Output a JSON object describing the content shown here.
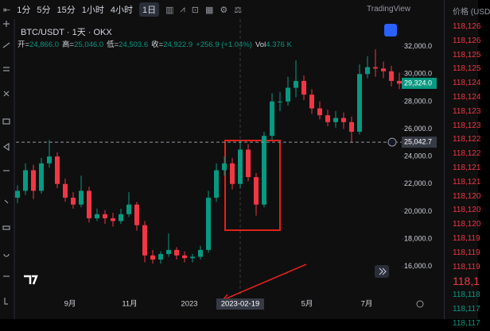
{
  "toolbar": {
    "intervals": [
      "1分",
      "5分",
      "15分",
      "1小时",
      "4小时",
      "1日"
    ],
    "brand": "TradingView"
  },
  "legend": {
    "symbol": "BTC/USDT · 1天 · OKX",
    "items": [
      {
        "label": "开=",
        "value": "24,866.0"
      },
      {
        "label": "高=",
        "value": "25,046.0"
      },
      {
        "label": "低=",
        "value": "24,503.6"
      },
      {
        "label": "收=",
        "value": "24,922.9"
      }
    ],
    "change": "+256.9 (+1.04%)",
    "vol_label": "Vol",
    "vol": "4.376 K"
  },
  "chart": {
    "type": "candlestick",
    "up_color": "#089981",
    "down_color": "#f23645",
    "open": [
      21000,
      21500,
      23000,
      21500,
      23500,
      24000,
      22000,
      21000,
      20500,
      21500,
      19500,
      19800,
      19500,
      19300,
      19800,
      20500,
      19000,
      16800,
      16500,
      16900,
      17200,
      16800,
      16600,
      16700,
      17200,
      21000,
      23000,
      23500,
      22000,
      24500,
      22500,
      20500,
      25500,
      28000,
      28000,
      29000,
      29500,
      28500,
      27500,
      27000,
      26500,
      26800,
      26500,
      25800,
      30000,
      30500,
      30400,
      30200,
      29500
    ],
    "high": [
      21900,
      23500,
      23400,
      23900,
      25200,
      24300,
      22400,
      21400,
      22600,
      21800,
      20200,
      20100,
      19900,
      20200,
      21400,
      20700,
      19300,
      17200,
      17100,
      18400,
      17400,
      17100,
      16900,
      17500,
      21500,
      23500,
      24000,
      23900,
      25200,
      24900,
      22800,
      25800,
      28600,
      28700,
      29800,
      31000,
      29900,
      28900,
      28000,
      27400,
      27300,
      27200,
      26900,
      30700,
      31300,
      31800,
      30900,
      30600,
      30100
    ],
    "low": [
      20600,
      21200,
      20900,
      21300,
      23200,
      21700,
      20700,
      20200,
      20300,
      19200,
      19300,
      19100,
      18900,
      19100,
      19600,
      18600,
      16300,
      16200,
      16200,
      16700,
      16500,
      16300,
      16300,
      16500,
      17000,
      20700,
      22600,
      21600,
      21700,
      22200,
      19700,
      20300,
      25200,
      27300,
      27700,
      28300,
      28100,
      27100,
      26700,
      26200,
      26100,
      26000,
      25000,
      25600,
      29700,
      29800,
      29700,
      29100,
      28900
    ],
    "close": [
      21500,
      23000,
      21500,
      23500,
      24000,
      22000,
      21000,
      20500,
      21500,
      19500,
      19800,
      19500,
      19300,
      19800,
      20500,
      19000,
      16800,
      16500,
      16900,
      17200,
      16800,
      16600,
      16700,
      17200,
      21000,
      23000,
      23500,
      22000,
      24500,
      22500,
      20500,
      25500,
      28000,
      28000,
      29000,
      29500,
      28500,
      27500,
      27000,
      26500,
      26800,
      26500,
      25800,
      30000,
      30500,
      30400,
      30200,
      29500,
      29300
    ],
    "xlim": [
      -0.2,
      48.3
    ],
    "ylim": [
      13900,
      34000
    ],
    "xticks": [
      {
        "value": 6.6,
        "label": "9月"
      },
      {
        "value": 14.1,
        "label": "11月"
      },
      {
        "value": 21.6,
        "label": "2023"
      },
      {
        "value": 36.4,
        "label": "5月"
      },
      {
        "value": 43.9,
        "label": "7月"
      }
    ],
    "yticks": [
      {
        "value": 16000,
        "label": "16,000.0"
      },
      {
        "value": 18000,
        "label": "18,000.0"
      },
      {
        "value": 20000,
        "label": "20,000.0"
      },
      {
        "value": 22000,
        "label": "22,000.0"
      },
      {
        "value": 24000,
        "label": "24,000.0"
      },
      {
        "value": 26000,
        "label": "26,000.0"
      },
      {
        "value": 28000,
        "label": "28,000.0"
      },
      {
        "value": 30000,
        "label": "30,000.0"
      },
      {
        "value": 32000,
        "label": "32,000.0"
      }
    ],
    "crosshair": {
      "x": {
        "value": 28,
        "label": "2023-02-19"
      },
      "y": {
        "value": 25042.7,
        "label": "25,042.7"
      }
    },
    "last_price": {
      "value": 29324,
      "label": "29,324.0"
    }
  },
  "orderbook": {
    "header": "价格 (USD",
    "asks": [
      "118,126",
      "118,126",
      "118,125",
      "118,125",
      "118,124",
      "118,124",
      "118,123",
      "118,123",
      "118,122",
      "118,122",
      "118,121",
      "118,121",
      "118,120",
      "118,120",
      "118,120",
      "118,119",
      "118,119",
      "118,119"
    ],
    "mid": "118,1",
    "bids": [
      "118,118",
      "118,117",
      "118,117"
    ]
  }
}
